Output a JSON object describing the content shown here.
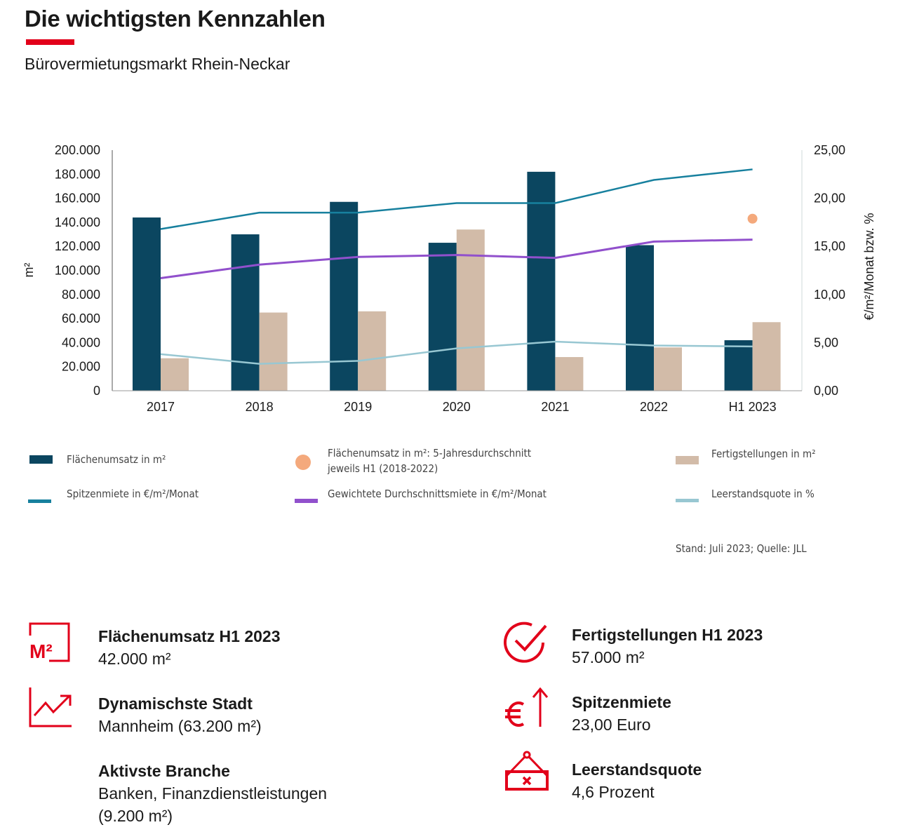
{
  "header": {
    "title": "Die wichtigsten Kennzahlen",
    "subtitle": "Bürovermietungsmarkt Rhein-Neckar",
    "accent": "#e2001a"
  },
  "chart_data": {
    "type": "bar",
    "categories": [
      "2017",
      "2018",
      "2019",
      "2020",
      "2021",
      "2022",
      "H1 2023"
    ],
    "ylabel": "m²",
    "y2label": "€/m²/Monat bzw. %",
    "ylim": [
      0,
      200000
    ],
    "y2lim": [
      0,
      25
    ],
    "yticks": [
      "0",
      "20.000",
      "40.000",
      "60.000",
      "80.000",
      "100.000",
      "120.000",
      "140.000",
      "160.000",
      "180.000",
      "200.000"
    ],
    "y2ticks": [
      "0,00",
      "5,00",
      "10,00",
      "15,00",
      "20,00",
      "25,00"
    ],
    "series": [
      {
        "name": "Flächenumsatz in m²",
        "kind": "bar",
        "axis": "left",
        "color": "#0b4660",
        "values": [
          144000,
          130000,
          157000,
          123000,
          182000,
          121000,
          42000
        ]
      },
      {
        "name": "Fertigstellungen in m²",
        "kind": "bar",
        "axis": "left",
        "color": "#d2bba8",
        "values": [
          27000,
          65000,
          66000,
          134000,
          28000,
          36000,
          57000
        ]
      },
      {
        "name": "Spitzenmiete in €/m²/Monat",
        "kind": "line",
        "axis": "right",
        "color": "#17809e",
        "values": [
          16.8,
          18.5,
          18.5,
          19.5,
          19.5,
          21.9,
          23.0
        ]
      },
      {
        "name": "Gewichtete Durchschnittsmiete in €/m²/Monat",
        "kind": "line",
        "axis": "right",
        "color": "#9150cc",
        "values": [
          11.7,
          13.1,
          13.9,
          14.1,
          13.8,
          15.5,
          15.7
        ]
      },
      {
        "name": "Leerstandsquote in %",
        "kind": "line",
        "axis": "right",
        "color": "#98c7d2",
        "values": [
          3.8,
          2.8,
          3.1,
          4.4,
          5.1,
          4.7,
          4.6
        ]
      },
      {
        "name": "Flächenumsatz in m²: 5-Jahresdurchschnitt jeweils H1 (2018-2022)",
        "kind": "point",
        "axis": "left",
        "color": "#f4a97c",
        "category": "H1 2023",
        "value": 143000
      }
    ],
    "legend": {
      "flaechenumsatz": "Flächenumsatz in m²",
      "avg_line1": "Flächenumsatz in m²: 5-Jahresdurchschnitt",
      "avg_line2": "jeweils H1 (2018-2022)",
      "fertig": "Fertigstellungen in m²",
      "spitzen": "Spitzenmiete in €/m²/Monat",
      "durchschnitt": "Gewichtete Durchschnittsmiete in €/m²/Monat",
      "leerstand": "Leerstandsquote in %"
    },
    "source": "Stand: Juli 2023; Quelle: JLL"
  },
  "kpis": [
    {
      "icon": "m2-icon",
      "title": "Flächenumsatz H1 2023",
      "value": "42.000 m²"
    },
    {
      "icon": "trend-up-icon",
      "title": "Dynamischste Stadt",
      "value": "Mannheim (63.200 m²)"
    },
    {
      "icon": "",
      "title": "Aktivste Branche",
      "value": "Banken, Finanzdienstleistungen",
      "value2": "(9.200 m²)"
    },
    {
      "icon": "check-circle-icon",
      "title": "Fertigstellungen H1 2023",
      "value": "57.000 m²"
    },
    {
      "icon": "euro-up-icon",
      "title": "Spitzenmiete",
      "value": "23,00 Euro"
    },
    {
      "icon": "vacancy-sign-icon",
      "title": "Leerstandsquote",
      "value": "4,6 Prozent"
    }
  ]
}
